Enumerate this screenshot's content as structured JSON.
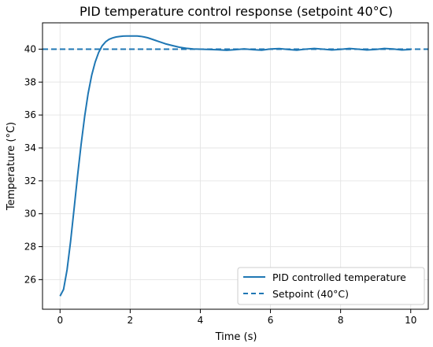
{
  "chart_data": {
    "type": "line",
    "title": "PID temperature control response (setpoint 40°C)",
    "xlabel": "Time (s)",
    "ylabel": "Temperature (°C)",
    "xlim": [
      -0.5,
      10.5
    ],
    "ylim": [
      24.2,
      41.6
    ],
    "xticks": [
      0,
      2,
      4,
      6,
      8,
      10
    ],
    "yticks": [
      26,
      28,
      30,
      32,
      34,
      36,
      38,
      40
    ],
    "grid": true,
    "legend_position": "lower-right",
    "series": [
      {
        "name": "PID controlled temperature",
        "style": "solid",
        "color": "#1f77b4",
        "x": [
          0,
          0.1,
          0.2,
          0.3,
          0.4,
          0.5,
          0.6,
          0.7,
          0.8,
          0.9,
          1.0,
          1.1,
          1.2,
          1.3,
          1.4,
          1.5,
          1.6,
          1.7,
          1.8,
          1.9,
          2.0,
          2.1,
          2.2,
          2.3,
          2.4,
          2.5,
          2.6,
          2.7,
          2.8,
          2.9,
          3.0,
          3.2,
          3.4,
          3.6,
          3.8,
          4.0,
          4.25,
          4.5,
          4.75,
          5.0,
          5.25,
          5.5,
          5.75,
          6.0,
          6.25,
          6.5,
          6.75,
          7.0,
          7.25,
          7.5,
          7.75,
          8.0,
          8.25,
          8.5,
          8.75,
          9.0,
          9.25,
          9.5,
          9.75,
          10.0
        ],
        "values": [
          25.0,
          25.4,
          26.6,
          28.3,
          30.3,
          32.3,
          34.2,
          35.9,
          37.3,
          38.4,
          39.2,
          39.8,
          40.2,
          40.45,
          40.6,
          40.68,
          40.74,
          40.77,
          40.79,
          40.8,
          40.8,
          40.8,
          40.8,
          40.78,
          40.74,
          40.69,
          40.62,
          40.55,
          40.47,
          40.4,
          40.33,
          40.22,
          40.12,
          40.05,
          40.01,
          40.0,
          39.98,
          39.96,
          39.93,
          39.97,
          40.02,
          39.97,
          39.94,
          40.01,
          40.03,
          39.98,
          39.94,
          40.0,
          40.04,
          40.0,
          39.95,
          39.99,
          40.04,
          40.0,
          39.95,
          39.98,
          40.04,
          40.01,
          39.95,
          39.98
        ]
      },
      {
        "name": "Setpoint (40°C)",
        "style": "dashed",
        "color": "#1f77b4",
        "x": [
          -0.5,
          10.5
        ],
        "values": [
          40,
          40
        ]
      }
    ]
  }
}
